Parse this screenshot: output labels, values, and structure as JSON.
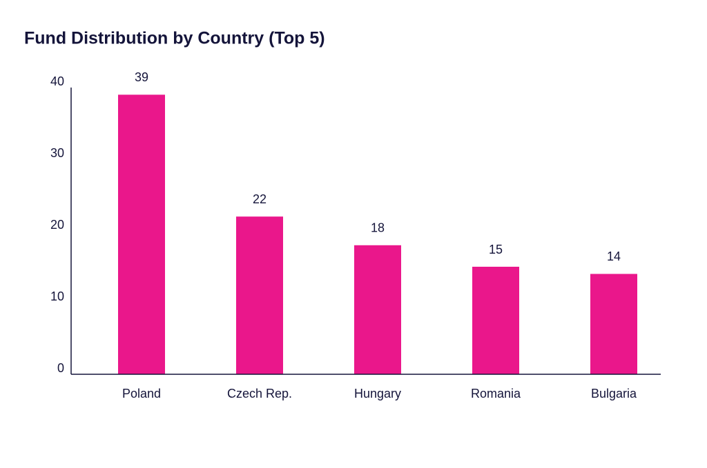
{
  "chart_data": {
    "type": "bar",
    "title": "Fund Distribution by Country (Top 5)",
    "categories": [
      "Poland",
      "Czech Rep.",
      "Hungary",
      "Romania",
      "Bulgaria"
    ],
    "values": [
      39,
      22,
      18,
      15,
      14
    ],
    "color": "#ea178b",
    "ylim": [
      0,
      40
    ],
    "yticks": [
      0,
      10,
      20,
      30,
      40
    ],
    "grid": false
  }
}
